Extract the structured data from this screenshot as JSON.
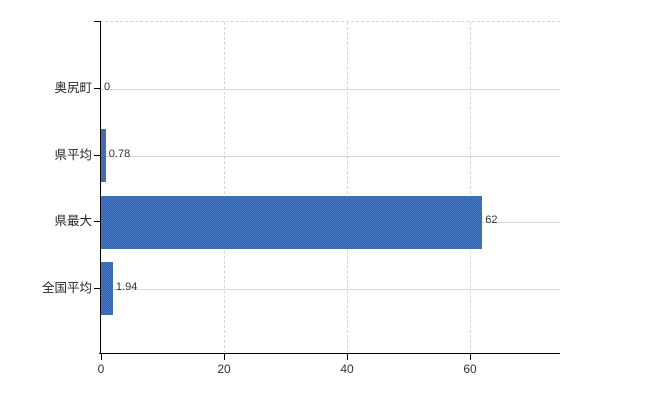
{
  "chart_data": {
    "type": "bar",
    "orientation": "horizontal",
    "title": "",
    "categories": [
      "奥尻町",
      "県平均",
      "県最大",
      "全国平均"
    ],
    "values": [
      0,
      0.78,
      62,
      1.94
    ],
    "value_labels": [
      "0",
      "0.78",
      "62",
      "1.94"
    ],
    "x_ticks": [
      0,
      20,
      40,
      60
    ],
    "x_tick_labels": [
      "0",
      "20",
      "40",
      "60"
    ],
    "xlim": [
      0,
      75
    ],
    "grid": true,
    "legend": false,
    "colors": {
      "bar": "#3f6db1",
      "bar_dither_light": "#4a7ac4",
      "bar_dither_dark": "#35619f",
      "axis": "#000000",
      "gridline": "#d4dbd3",
      "text": "#333333",
      "background": "#ffffff"
    }
  }
}
